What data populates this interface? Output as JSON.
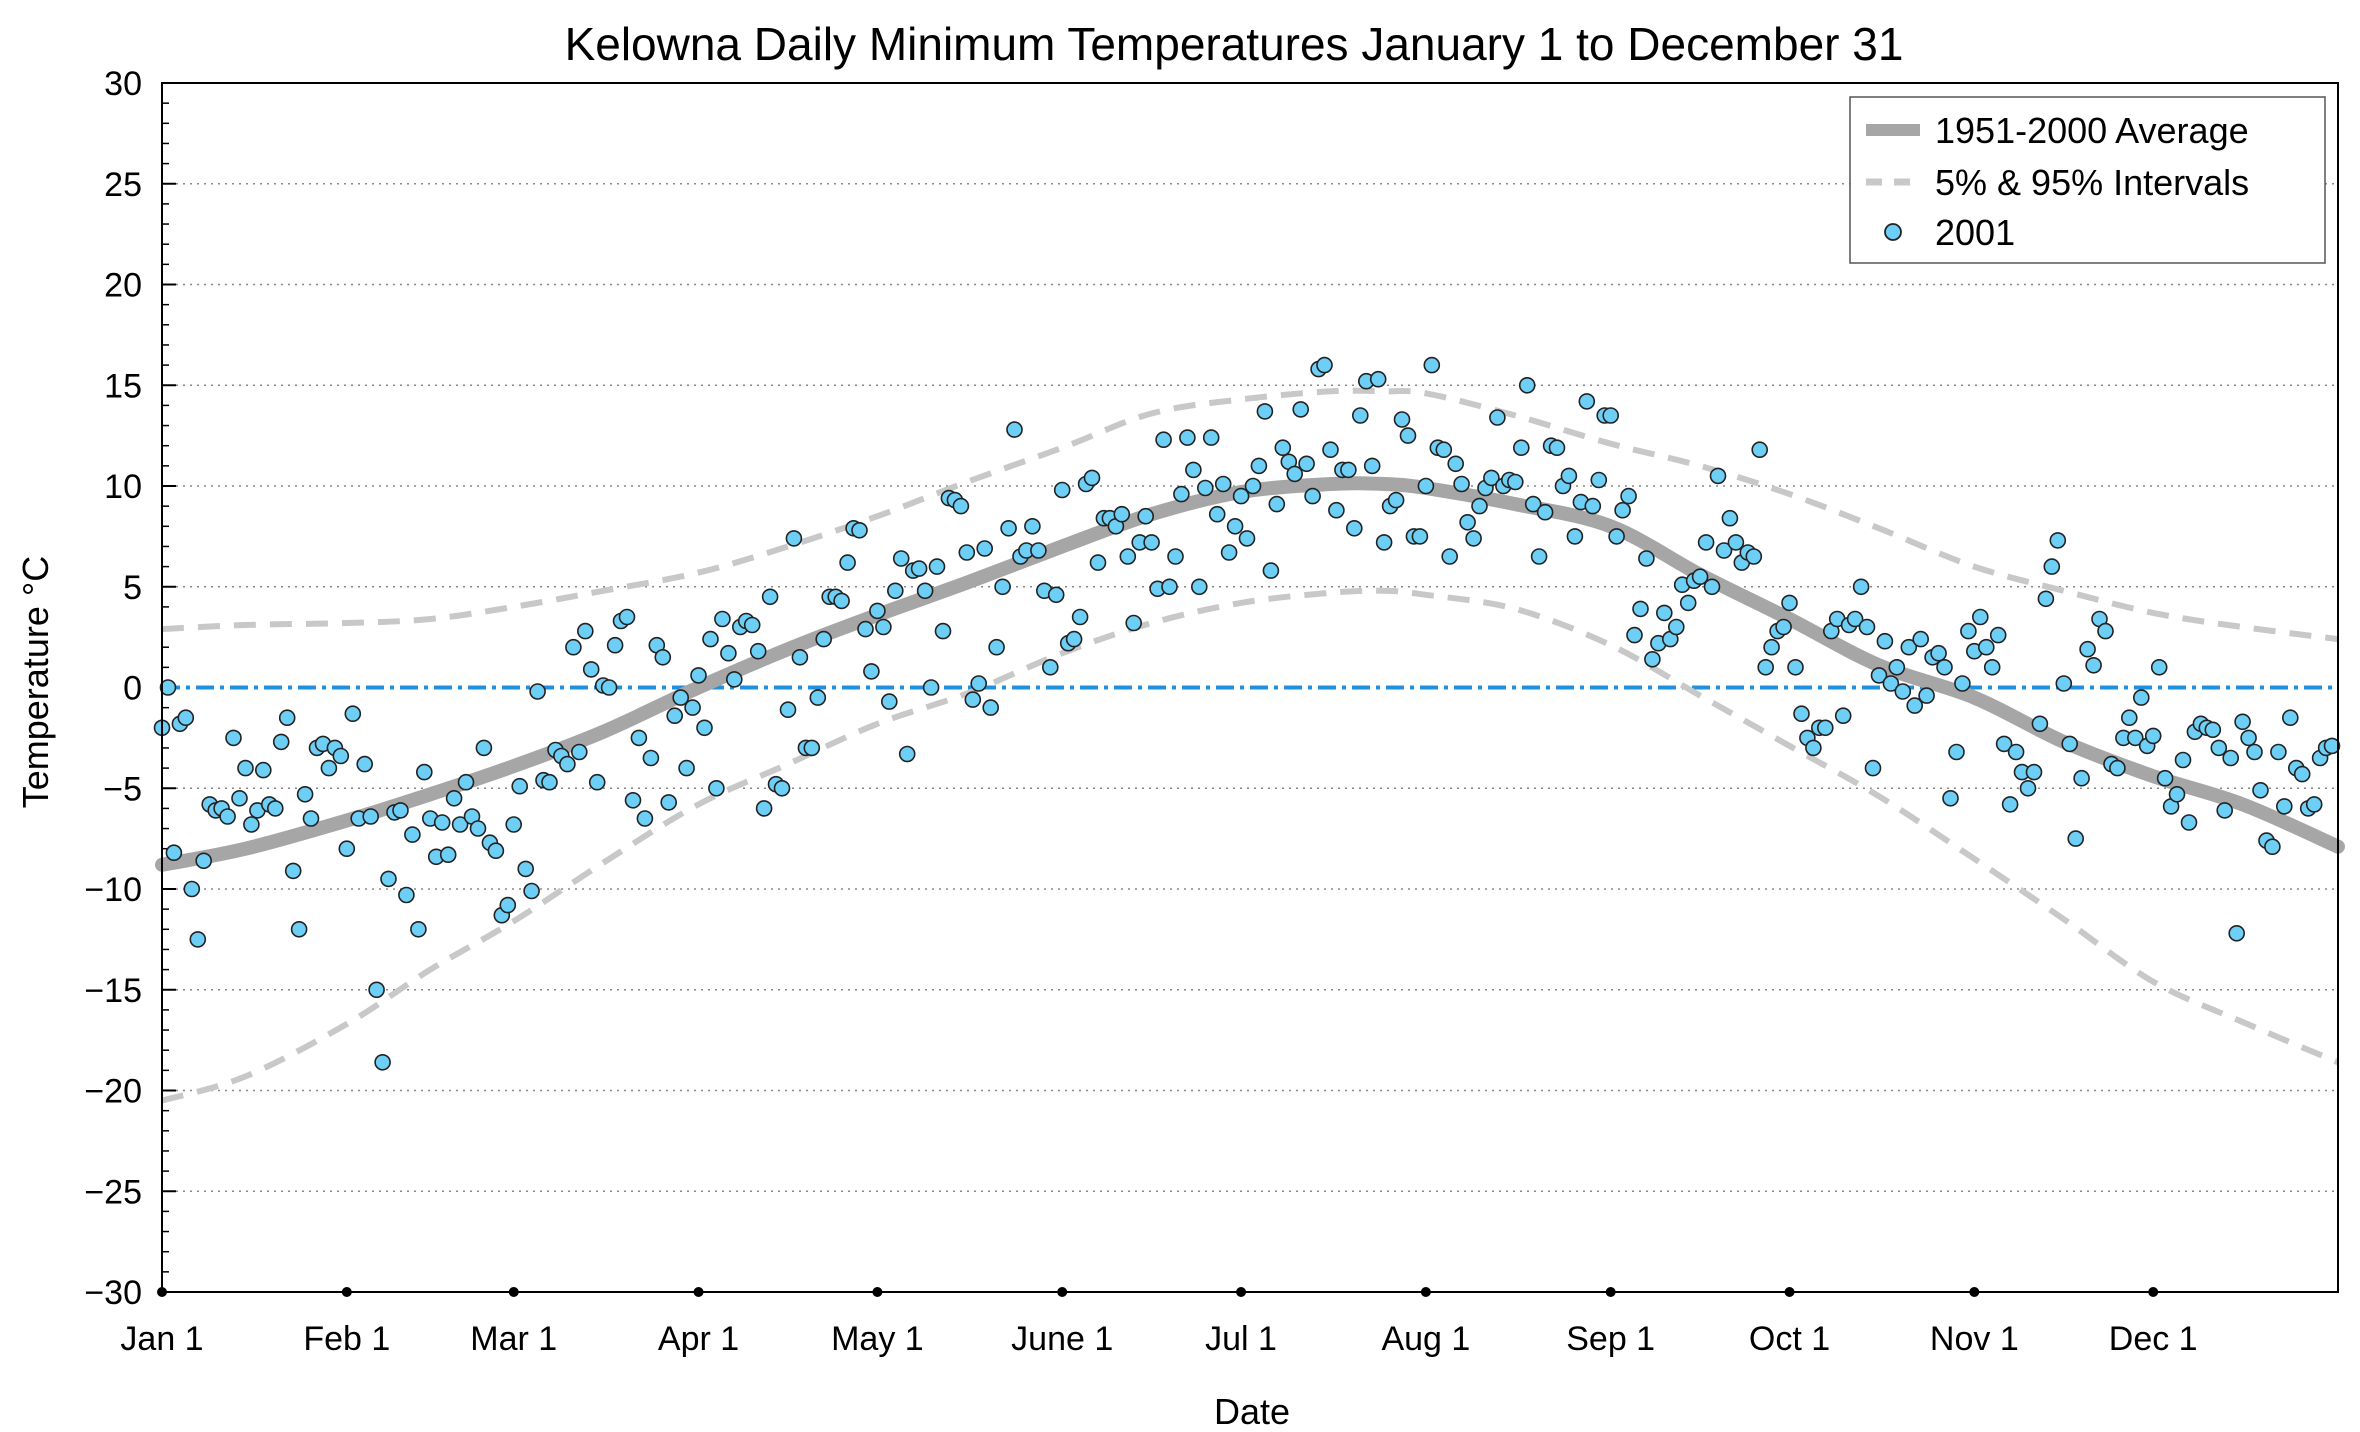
{
  "chart_data": {
    "type": "scatter",
    "title": "Kelowna Daily Minimum Temperatures January 1 to December 31",
    "xlabel": "Date",
    "ylabel": "Temperature °C",
    "xlim": [
      1,
      366
    ],
    "ylim": [
      -30,
      30
    ],
    "y_ticks": [
      -30,
      -25,
      -20,
      -15,
      -10,
      -5,
      0,
      5,
      10,
      15,
      20,
      25,
      30
    ],
    "y_tick_labels": [
      "−30",
      "−25",
      "−20",
      "−15",
      "−10",
      "−5",
      "0",
      "5",
      "10",
      "15",
      "20",
      "25",
      "30"
    ],
    "x_ticks": [
      {
        "day": 1,
        "label": "Jan 1"
      },
      {
        "day": 32,
        "label": "Feb 1"
      },
      {
        "day": 60,
        "label": "Mar 1"
      },
      {
        "day": 91,
        "label": "Apr 1"
      },
      {
        "day": 121,
        "label": "May 1"
      },
      {
        "day": 152,
        "label": "June 1"
      },
      {
        "day": 182,
        "label": "Jul 1"
      },
      {
        "day": 213,
        "label": "Aug 1"
      },
      {
        "day": 244,
        "label": "Sep 1"
      },
      {
        "day": 274,
        "label": "Oct 1"
      },
      {
        "day": 305,
        "label": "Nov 1"
      },
      {
        "day": 335,
        "label": "Dec 1"
      }
    ],
    "grid": "horizontal dotted",
    "legend_position": "top-right",
    "zero_line_color": "#1f8fe0",
    "series": [
      {
        "name": "1951-2000 Average",
        "style": "solid-thick",
        "color": "#a6a6a6",
        "x": [
          1,
          15,
          32,
          46,
          60,
          75,
          91,
          106,
          121,
          136,
          152,
          167,
          182,
          197,
          206,
          213,
          228,
          244,
          259,
          274,
          289,
          305,
          320,
          335,
          350,
          366
        ],
        "y": [
          -8.8,
          -8.0,
          -6.6,
          -5.3,
          -3.9,
          -2.2,
          0.0,
          1.9,
          3.6,
          5.2,
          7.0,
          8.6,
          9.7,
          10.1,
          10.1,
          9.9,
          9.1,
          8.0,
          5.6,
          3.4,
          1.1,
          -0.5,
          -2.7,
          -4.4,
          -5.8,
          -7.9
        ]
      },
      {
        "name": "5% & 95% Intervals",
        "style": "dashed",
        "color": "#c8c8c8",
        "bands": [
          {
            "x": [
              1,
              15,
              32,
              46,
              60,
              75,
              91,
              106,
              121,
              136,
              152,
              167,
              182,
              197,
              206,
              213,
              228,
              244,
              259,
              274,
              289,
              305,
              320,
              335,
              350,
              366
            ],
            "y": [
              2.9,
              3.1,
              3.2,
              3.4,
              4.0,
              4.8,
              5.7,
              7.0,
              8.5,
              10.2,
              11.9,
              13.6,
              14.3,
              14.7,
              14.7,
              14.6,
              13.5,
              12.1,
              11.0,
              9.6,
              7.9,
              6.0,
              4.8,
              3.7,
              3.0,
              2.4
            ]
          },
          {
            "x": [
              1,
              15,
              32,
              46,
              60,
              75,
              91,
              106,
              121,
              136,
              152,
              167,
              182,
              197,
              206,
              213,
              228,
              244,
              259,
              274,
              289,
              305,
              320,
              335,
              350,
              366
            ],
            "y": [
              -20.5,
              -19.3,
              -16.7,
              -14.0,
              -11.6,
              -8.7,
              -5.8,
              -3.8,
              -1.8,
              -0.3,
              1.7,
              3.2,
              4.2,
              4.7,
              4.8,
              4.6,
              3.9,
              2.1,
              -0.4,
              -2.9,
              -5.4,
              -8.5,
              -11.5,
              -14.6,
              -16.6,
              -18.6
            ]
          }
        ]
      },
      {
        "name": "2001",
        "style": "markers",
        "color": "#6ecff6",
        "x": [
          1,
          2,
          3,
          4,
          5,
          6,
          7,
          8,
          9,
          10,
          11,
          12,
          13,
          14,
          15,
          16,
          17,
          18,
          19,
          20,
          21,
          22,
          23,
          24,
          25,
          26,
          27,
          28,
          29,
          30,
          31,
          32,
          33,
          34,
          35,
          36,
          37,
          38,
          39,
          40,
          41,
          42,
          43,
          44,
          45,
          46,
          47,
          48,
          49,
          50,
          51,
          52,
          53,
          54,
          55,
          56,
          57,
          58,
          59,
          60,
          61,
          62,
          63,
          64,
          65,
          66,
          67,
          68,
          69,
          70,
          71,
          72,
          73,
          74,
          75,
          76,
          77,
          78,
          79,
          80,
          81,
          82,
          83,
          84,
          85,
          86,
          87,
          88,
          89,
          90,
          91,
          92,
          93,
          94,
          95,
          96,
          97,
          98,
          99,
          100,
          101,
          102,
          103,
          104,
          105,
          106,
          107,
          108,
          109,
          110,
          111,
          112,
          113,
          114,
          115,
          116,
          117,
          118,
          119,
          120,
          121,
          122,
          123,
          124,
          125,
          126,
          127,
          128,
          129,
          130,
          131,
          132,
          133,
          134,
          135,
          136,
          137,
          138,
          139,
          140,
          141,
          142,
          143,
          144,
          145,
          146,
          147,
          148,
          149,
          150,
          151,
          152,
          153,
          154,
          155,
          156,
          157,
          158,
          159,
          160,
          161,
          162,
          163,
          164,
          165,
          166,
          167,
          168,
          169,
          170,
          171,
          172,
          173,
          174,
          175,
          176,
          177,
          178,
          179,
          180,
          181,
          182,
          183,
          184,
          185,
          186,
          187,
          188,
          189,
          190,
          191,
          192,
          193,
          194,
          195,
          196,
          197,
          198,
          199,
          200,
          201,
          202,
          203,
          204,
          205,
          206,
          207,
          208,
          209,
          210,
          211,
          212,
          213,
          214,
          215,
          216,
          217,
          218,
          219,
          220,
          221,
          222,
          223,
          224,
          225,
          226,
          227,
          228,
          229,
          230,
          231,
          232,
          233,
          234,
          235,
          236,
          237,
          238,
          239,
          240,
          241,
          242,
          243,
          244,
          245,
          246,
          247,
          248,
          249,
          250,
          251,
          252,
          253,
          254,
          255,
          256,
          257,
          258,
          259,
          260,
          261,
          262,
          263,
          264,
          265,
          266,
          267,
          268,
          269,
          270,
          271,
          272,
          273,
          274,
          275,
          276,
          277,
          278,
          279,
          280,
          281,
          282,
          283,
          284,
          285,
          286,
          287,
          288,
          289,
          290,
          291,
          292,
          293,
          294,
          295,
          296,
          297,
          298,
          299,
          300,
          301,
          302,
          303,
          304,
          305,
          306,
          307,
          308,
          309,
          310,
          311,
          312,
          313,
          314,
          315,
          316,
          317,
          318,
          319,
          320,
          321,
          322,
          323,
          324,
          325,
          326,
          327,
          328,
          329,
          330,
          331,
          332,
          333,
          334,
          335,
          336,
          337,
          338,
          339,
          340,
          341,
          342,
          343,
          344,
          345,
          346,
          347,
          348,
          349,
          350,
          351,
          352,
          353,
          354,
          355,
          356,
          357,
          358,
          359,
          360,
          361,
          362,
          363,
          364,
          365
        ],
        "y": [
          -2.0,
          0.0,
          -8.2,
          -1.8,
          -1.5,
          -10.0,
          -12.5,
          -8.6,
          -5.8,
          -6.1,
          -6.0,
          -6.4,
          -2.5,
          -5.5,
          -4.0,
          -6.8,
          -6.1,
          -4.1,
          -5.8,
          -6.0,
          -2.7,
          -1.5,
          -9.1,
          -12.0,
          -5.3,
          -6.5,
          -3.0,
          -2.8,
          -4.0,
          -3.0,
          -3.4,
          -8.0,
          -1.3,
          -6.5,
          -3.8,
          -6.4,
          -15.0,
          -18.6,
          -9.5,
          -6.2,
          -6.1,
          -10.3,
          -7.3,
          -12.0,
          -4.2,
          -6.5,
          -8.4,
          -6.7,
          -8.3,
          -5.5,
          -6.8,
          -4.7,
          -6.4,
          -7.0,
          -3.0,
          -7.7,
          -8.1,
          -11.3,
          -10.8,
          -6.8,
          -4.9,
          -9.0,
          -10.1,
          -0.2,
          -4.6,
          -4.7,
          -3.1,
          -3.4,
          -3.8,
          2.0,
          -3.2,
          2.8,
          0.9,
          -4.7,
          0.1,
          0.0,
          2.1,
          3.3,
          3.5,
          -5.6,
          -2.5,
          -6.5,
          -3.5,
          2.1,
          1.5,
          -5.7,
          -1.4,
          -0.5,
          -4.0,
          -1.0,
          0.6,
          -2.0,
          2.4,
          -5.0,
          3.4,
          1.7,
          0.4,
          3.0,
          3.3,
          3.1,
          1.8,
          -6.0,
          4.5,
          -4.8,
          -5.0,
          -1.1,
          7.4,
          1.5,
          -3.0,
          -3.0,
          -0.5,
          2.4,
          4.5,
          4.5,
          4.3,
          6.2,
          7.9,
          7.8,
          2.9,
          0.8,
          3.8,
          3.0,
          -0.7,
          4.8,
          6.4,
          -3.3,
          5.8,
          5.9,
          4.8,
          0.0,
          6.0,
          2.8,
          9.4,
          9.3,
          9.0,
          6.7,
          -0.6,
          0.2,
          6.9,
          -1.0,
          2.0,
          5.0,
          7.9,
          12.8,
          6.5,
          6.8,
          8.0,
          6.8,
          4.8,
          1.0,
          4.6,
          9.8,
          2.2,
          2.4,
          3.5,
          10.1,
          10.4,
          6.2,
          8.4,
          8.4,
          8.0,
          8.6,
          6.5,
          3.2,
          7.2,
          8.5,
          7.2,
          4.9,
          12.3,
          5.0,
          6.5,
          9.6,
          12.4,
          10.8,
          5.0,
          9.9,
          12.4,
          8.6,
          10.1,
          6.7,
          8.0,
          9.5,
          7.4,
          10.0,
          11.0,
          13.7,
          5.8,
          9.1,
          11.9,
          11.2,
          10.6,
          13.8,
          11.1,
          9.5,
          15.8,
          16.0,
          11.8,
          8.8,
          10.8,
          10.8,
          7.9,
          13.5,
          15.2,
          11.0,
          15.3,
          7.2,
          9.0,
          9.3,
          13.3,
          12.5,
          7.5,
          7.5,
          10.0,
          16.0,
          11.9,
          11.8,
          6.5,
          11.1,
          10.1,
          8.2,
          7.4,
          9.0,
          9.9,
          10.4,
          13.4,
          10.0,
          10.3,
          10.2,
          11.9,
          15.0,
          9.1,
          6.5,
          8.7,
          12.0,
          11.9,
          10.0,
          10.5,
          7.5,
          9.2,
          14.2,
          9.0,
          10.3,
          13.5,
          13.5,
          7.5,
          8.8,
          9.5,
          2.6,
          3.9,
          6.4,
          1.4,
          2.2,
          3.7,
          2.4,
          3.0,
          5.1,
          4.2,
          5.3,
          5.5,
          7.2,
          5.0,
          10.5,
          6.8,
          8.4,
          7.2,
          6.2,
          6.7,
          6.5,
          11.8,
          1.0,
          2.0,
          2.8,
          3.0,
          4.2,
          1.0,
          -1.3,
          -2.5,
          -3.0,
          -2.0,
          -2.0,
          2.8,
          3.4,
          -1.4,
          3.1,
          3.4,
          5.0,
          3.0,
          -4.0,
          0.6,
          2.3,
          0.2,
          1.0,
          -0.2,
          2.0,
          -0.9,
          2.4,
          -0.4,
          1.5,
          1.7,
          1.0,
          -5.5,
          -3.2,
          0.2,
          2.8,
          1.8,
          3.5,
          2.0,
          1.0,
          2.6,
          -2.8,
          -5.8,
          -3.2,
          -4.2,
          -5.0,
          -4.2,
          -1.8,
          4.4,
          6.0,
          7.3,
          0.2,
          -2.8,
          -7.5,
          -4.5,
          1.9,
          1.1,
          3.4,
          2.8,
          -3.8,
          -4.0,
          -2.5,
          -1.5,
          -2.5,
          -0.5,
          -2.9,
          -2.4,
          1.0,
          -4.5,
          -5.9,
          -5.3,
          -3.6,
          -6.7,
          -2.2,
          -1.8,
          -2.0,
          -2.1,
          -3.0,
          -6.1,
          -3.5,
          -12.2,
          -1.7,
          -2.5,
          -3.2,
          -5.1,
          -7.6,
          -7.9,
          -3.2,
          -5.9,
          -1.5,
          -4.0,
          -4.3,
          -6.0,
          -5.8,
          -3.5,
          -3.0,
          -2.9
        ]
      }
    ]
  }
}
